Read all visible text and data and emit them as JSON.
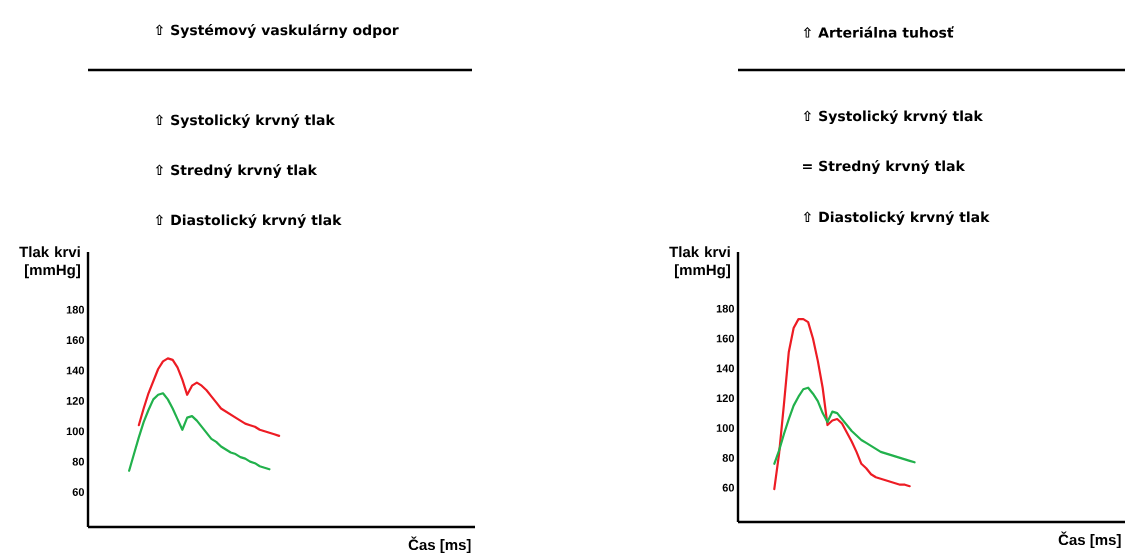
{
  "chart_data": [
    {
      "type": "line",
      "xlabel": "Čas [ms]",
      "ylabel": "Tlak krvi [mmHg]",
      "annotations": [
        "⇧ Systémový vaskulárny odpor",
        "⇧ Systolický krvný tlak",
        "⇧ Stredný krvný tlak",
        "⇧ Diastolický krvný tlak"
      ],
      "categories": [
        null,
        null,
        null,
        null,
        null,
        null,
        null,
        null,
        null,
        null,
        null,
        null,
        null,
        null,
        null,
        null,
        null,
        null,
        null,
        null,
        null,
        null,
        null,
        null,
        null,
        null,
        null,
        null,
        null,
        null,
        null,
        null,
        null,
        null,
        null,
        null,
        null,
        null,
        null,
        null,
        null,
        null,
        null,
        null,
        null,
        null,
        null,
        null,
        null,
        null,
        null,
        null,
        null,
        null,
        null,
        null,
        null,
        null,
        null,
        null,
        null,
        null,
        null,
        null,
        null,
        null,
        null,
        null,
        null,
        null,
        null,
        null,
        null,
        null,
        null,
        null,
        null,
        null,
        null,
        null
      ],
      "series": [
        {
          "color": "#ed1c24",
          "values": [
            null,
            null,
            null,
            null,
            null,
            null,
            null,
            null,
            null,
            null,
            104,
            115,
            125,
            133,
            141,
            146,
            148,
            147,
            142,
            134,
            124,
            130,
            132,
            130,
            127,
            123,
            119,
            115,
            113,
            111,
            109,
            107,
            105,
            104,
            103,
            101,
            100,
            99,
            98,
            97,
            null,
            null,
            null,
            null,
            null,
            null,
            null,
            null,
            null,
            null,
            null,
            null,
            null,
            null,
            null,
            null,
            null,
            null,
            null,
            null,
            null,
            null,
            null,
            null,
            null,
            null,
            null,
            null,
            null,
            null,
            null,
            null,
            null,
            null,
            null,
            null,
            null,
            null,
            null,
            null
          ]
        },
        {
          "color": "#22b14c",
          "values": [
            null,
            null,
            null,
            null,
            null,
            null,
            null,
            null,
            74,
            85,
            96,
            106,
            114,
            121,
            124,
            125,
            121,
            115,
            108,
            101,
            109,
            110,
            107,
            103,
            99,
            95,
            93,
            90,
            88,
            86,
            85,
            83,
            82,
            80,
            79,
            77,
            76,
            75,
            null,
            null,
            null,
            null,
            null,
            null,
            null,
            null,
            null,
            null,
            null,
            null,
            null,
            null,
            null,
            null,
            null,
            null,
            null,
            null,
            null,
            null,
            null,
            null,
            null,
            null,
            null,
            null,
            null,
            null,
            null,
            null,
            null,
            null,
            null,
            null,
            null,
            null,
            null,
            null,
            null,
            null
          ]
        }
      ],
      "ylim": [
        37,
        218
      ],
      "yticks": [
        60,
        80,
        100,
        120,
        140,
        160,
        180
      ],
      "tick_labels": "y"
    },
    {
      "type": "line",
      "xlabel": "Čas [ms]",
      "ylabel": "Tlak krvi [mmHg]",
      "annotations": [
        "⇧ Arteriálna tuhosť",
        "⇧ Systolický krvný tlak",
        "= Stredný krvný tlak",
        "⇧ Diastolický krvný tlak"
      ],
      "categories": [
        null,
        null,
        null,
        null,
        null,
        null,
        null,
        null,
        null,
        null,
        null,
        null,
        null,
        null,
        null,
        null,
        null,
        null,
        null,
        null,
        null,
        null,
        null,
        null,
        null,
        null,
        null,
        null,
        null,
        null,
        null,
        null,
        null,
        null,
        null,
        null,
        null,
        null,
        null,
        null,
        null,
        null,
        null,
        null,
        null,
        null,
        null,
        null,
        null,
        null,
        null,
        null,
        null,
        null,
        null,
        null,
        null,
        null,
        null,
        null,
        null,
        null,
        null,
        null,
        null,
        null,
        null,
        null,
        null,
        null,
        null,
        null,
        null,
        null,
        null,
        null,
        null,
        null,
        null,
        null
      ],
      "series": [
        {
          "color": "#ed1c24",
          "values": [
            null,
            null,
            null,
            null,
            null,
            null,
            null,
            59,
            83,
            116,
            151,
            167,
            173,
            173,
            171,
            160,
            145,
            127,
            102,
            105,
            106,
            103,
            97,
            91,
            84,
            76,
            73,
            69,
            67,
            66,
            65,
            64,
            63,
            62,
            62,
            61,
            null,
            null,
            null,
            null,
            null,
            null,
            null,
            null,
            null,
            null,
            null,
            null,
            null,
            null,
            null,
            null,
            null,
            null,
            null,
            null,
            null,
            null,
            null,
            null,
            null,
            null,
            null,
            null,
            null,
            null,
            null,
            null,
            null,
            null,
            null,
            null,
            null,
            null,
            null,
            null,
            null,
            null,
            null,
            null
          ]
        },
        {
          "color": "#22b14c",
          "values": [
            null,
            null,
            null,
            null,
            null,
            null,
            null,
            76,
            85,
            96,
            106,
            115,
            121,
            126,
            127,
            123,
            118,
            110,
            104,
            111,
            110,
            106,
            102,
            98,
            95,
            92,
            90,
            88,
            86,
            84,
            83,
            82,
            81,
            80,
            79,
            78,
            77,
            null,
            null,
            null,
            null,
            null,
            null,
            null,
            null,
            null,
            null,
            null,
            null,
            null,
            null,
            null,
            null,
            null,
            null,
            null,
            null,
            null,
            null,
            null,
            null,
            null,
            null,
            null,
            null,
            null,
            null,
            null,
            null,
            null,
            null,
            null,
            null,
            null,
            null,
            null,
            null,
            null,
            null,
            null
          ]
        }
      ],
      "ylim": [
        37,
        218
      ],
      "yticks": [
        60,
        80,
        100,
        120,
        140,
        160,
        180
      ],
      "tick_labels": "y"
    }
  ]
}
